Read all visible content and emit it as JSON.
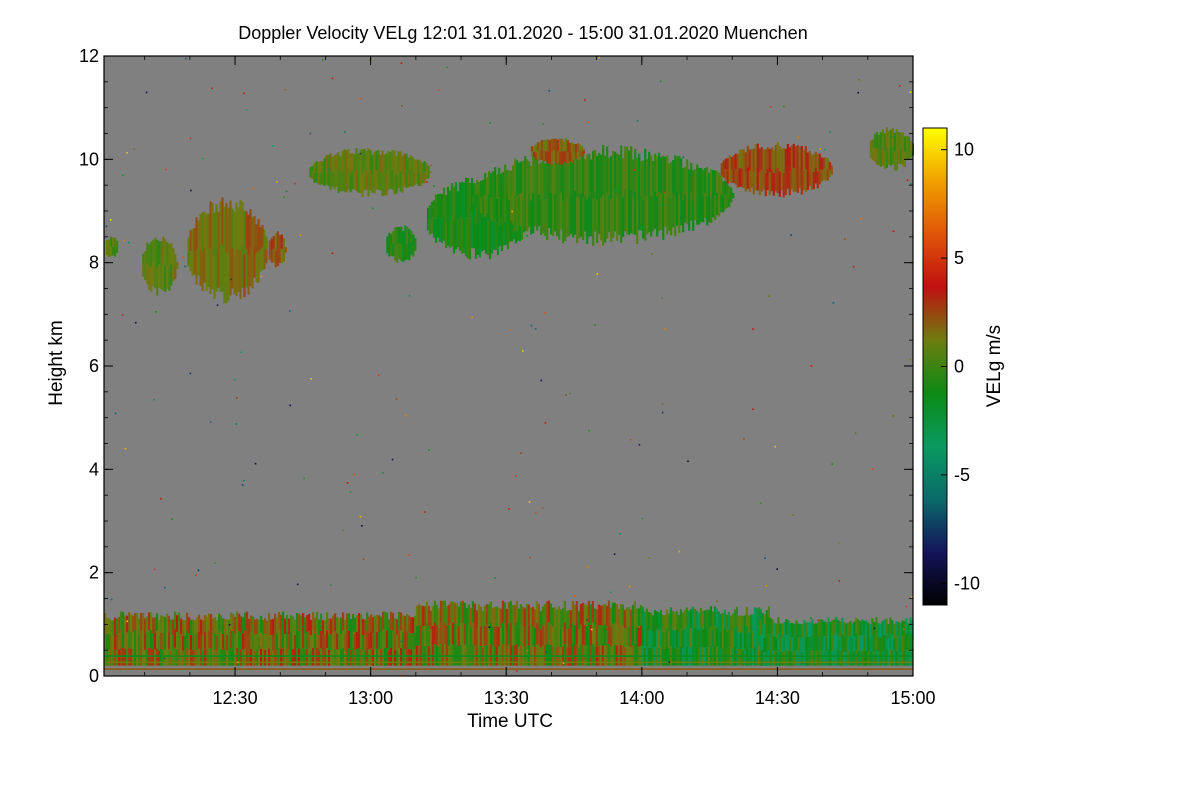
{
  "chart_data": {
    "type": "heatmap",
    "title": "Doppler Velocity VELg   12:01 31.01.2020 - 15:00 31.01.2020 Muenchen",
    "xlabel": "Time UTC",
    "ylabel": "Height km",
    "colorbar_label": "VELg m/s",
    "x_range_minutes": [
      721,
      900
    ],
    "x_ticks": [
      {
        "minute": 750,
        "label": "12:30"
      },
      {
        "minute": 780,
        "label": "13:00"
      },
      {
        "minute": 810,
        "label": "13:30"
      },
      {
        "minute": 840,
        "label": "14:00"
      },
      {
        "minute": 870,
        "label": "14:30"
      },
      {
        "minute": 900,
        "label": "15:00"
      }
    ],
    "ylim": [
      0,
      12
    ],
    "y_ticks": [
      0,
      2,
      4,
      6,
      8,
      10,
      12
    ],
    "clim": [
      -11,
      11
    ],
    "colorbar_ticks": [
      -10,
      -5,
      0,
      5,
      10
    ],
    "background_color": "#808080",
    "colormap": [
      "#000000",
      "#14145a",
      "#0a6a6a",
      "#0a9a60",
      "#0b8a14",
      "#6e7d10",
      "#c01010",
      "#e05508",
      "#f0a000",
      "#ffff00"
    ],
    "echo_regions": [
      {
        "name": "cirrus-a",
        "t0": 721,
        "t1": 724,
        "h0": 8.1,
        "h1": 8.5,
        "v": 0.5
      },
      {
        "name": "cirrus-b",
        "t0": 729,
        "t1": 737,
        "h0": 7.4,
        "h1": 8.5,
        "v": 0.8
      },
      {
        "name": "cirrus-c",
        "t0": 739,
        "t1": 757,
        "h0": 7.3,
        "h1": 9.2,
        "v": 1.5
      },
      {
        "name": "cirrus-d",
        "t0": 757,
        "t1": 761,
        "h0": 7.9,
        "h1": 8.6,
        "v": 2.2
      },
      {
        "name": "cirrus-e",
        "t0": 783,
        "t1": 790,
        "h0": 8.0,
        "h1": 8.7,
        "v": -0.8
      },
      {
        "name": "cirrus-f",
        "t0": 766,
        "t1": 793,
        "h0": 9.3,
        "h1": 10.2,
        "v": 0.7
      },
      {
        "name": "cirrus-g",
        "t0": 792,
        "t1": 815,
        "h0": 8.1,
        "h1": 9.6,
        "v": -1.0
      },
      {
        "name": "cirrus-h",
        "t0": 802,
        "t1": 860,
        "h0": 8.4,
        "h1": 10.2,
        "v": -0.4
      },
      {
        "name": "cirrus-i",
        "t0": 815,
        "t1": 827,
        "h0": 9.9,
        "h1": 10.4,
        "v": 2.0
      },
      {
        "name": "cirrus-j",
        "t0": 857,
        "t1": 882,
        "h0": 9.3,
        "h1": 10.3,
        "v": 2.5
      },
      {
        "name": "cirrus-k",
        "t0": 890,
        "t1": 900,
        "h0": 9.8,
        "h1": 10.6,
        "v": 0.5
      },
      {
        "name": "pbl-a",
        "t0": 721,
        "t1": 790,
        "h0": 0.2,
        "h1": 1.2,
        "v": 1.2
      },
      {
        "name": "pbl-b",
        "t0": 790,
        "t1": 840,
        "h0": 0.2,
        "h1": 1.4,
        "v": 1.0
      },
      {
        "name": "pbl-c",
        "t0": 840,
        "t1": 868,
        "h0": 0.2,
        "h1": 1.3,
        "v": -1.2
      },
      {
        "name": "pbl-d",
        "t0": 866,
        "t1": 900,
        "h0": 0.2,
        "h1": 1.1,
        "v": -1.7
      }
    ]
  }
}
